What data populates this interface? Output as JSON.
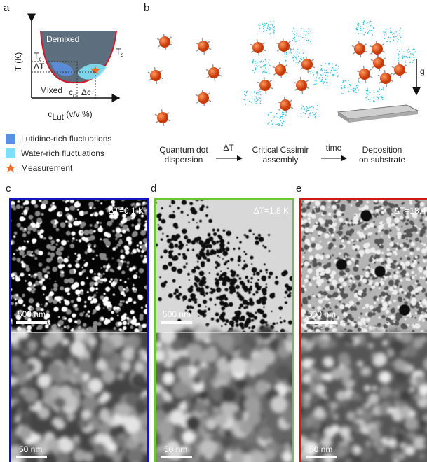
{
  "panel_a": {
    "label": "a",
    "y_axis": "T (K)",
    "x_axis": {
      "main": "c",
      "sub": "Lut",
      "rest": " (v/v %)"
    },
    "regions": {
      "demixed": "Demixed",
      "mixed": "Mixed"
    },
    "markers": {
      "ts": {
        "main": "T",
        "sub": "s"
      },
      "tc": {
        "main": "T",
        "sub": "c"
      },
      "dt": "ΔT",
      "cc": {
        "main": "c",
        "sub": "c"
      },
      "dc": "Δc"
    },
    "legend": [
      {
        "label": "Lutidine-rich fluctuations",
        "color": "#5b8fe0"
      },
      {
        "label": "Water-rich fluctuations",
        "color": "#7fe0f5"
      },
      {
        "label": "Measurement",
        "color": "#f06a2a"
      }
    ]
  },
  "panel_b": {
    "label": "b",
    "gravity": "g",
    "stages": [
      {
        "lines": [
          "Quantum dot",
          "dispersion"
        ]
      },
      {
        "lines": [
          "Critical Casimir",
          "assembly"
        ]
      },
      {
        "lines": [
          "Deposition",
          "on substrate"
        ]
      }
    ],
    "arrows": [
      "ΔT",
      "time"
    ]
  },
  "panels": [
    {
      "label": "c",
      "delta_t": "ΔT=0.1 K",
      "scale_top": "500 nm",
      "scale_bottom": "50 nm",
      "color": "#1515c8"
    },
    {
      "label": "d",
      "delta_t": "ΔT=1.8 K",
      "scale_top": "500 nm",
      "scale_bottom": "50 nm",
      "color": "#6cc437"
    },
    {
      "label": "e",
      "delta_t": "ΔT=18.4 K",
      "scale_top": "500 nm",
      "scale_bottom": "50 nm",
      "color": "#d01818"
    }
  ]
}
